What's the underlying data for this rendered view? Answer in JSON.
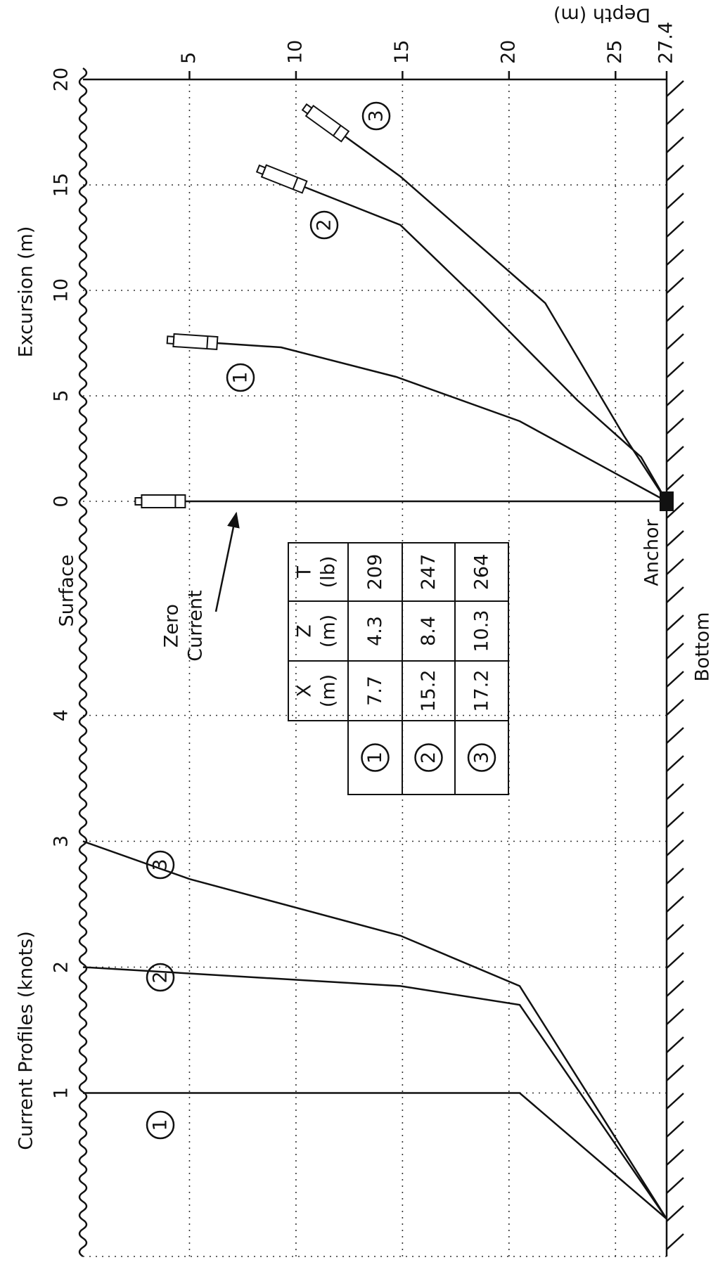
{
  "chart_data": {
    "type": "mooring",
    "excursion_axis": {
      "label": "Excursion (m)",
      "xlim": [
        0,
        20
      ],
      "xticks": [
        0,
        5,
        10,
        15,
        20
      ]
    },
    "current_axis": {
      "label": "Current Profiles (knots)",
      "xlim": [
        0,
        4
      ],
      "xticks": [
        1,
        2,
        3,
        4
      ]
    },
    "depth_axis": {
      "label": "Depth (m)",
      "ylim": [
        0,
        27.4
      ],
      "yticks": [
        5,
        10,
        15,
        20,
        25,
        27.4
      ]
    },
    "grid": true,
    "zero_current": {
      "label": [
        "Zero",
        "Current"
      ],
      "x": [
        0,
        0
      ],
      "depth": [
        4.8,
        27.4
      ]
    },
    "series": [
      {
        "name": "1",
        "x": [
          7.5,
          7.3,
          5.9,
          3.8,
          0
        ],
        "depth": [
          6.3,
          9.3,
          14.7,
          20.5,
          27.4
        ]
      },
      {
        "name": "2",
        "x": [
          14.9,
          13.1,
          9.4,
          4.8,
          2.1,
          0
        ],
        "depth": [
          10.4,
          14.9,
          18.7,
          23.2,
          26.2,
          27.4
        ]
      },
      {
        "name": "3",
        "x": [
          17.3,
          15.4,
          9.4,
          3.1,
          0
        ],
        "depth": [
          12.3,
          14.9,
          21.7,
          25.4,
          27.4
        ]
      }
    ],
    "current_profiles": [
      {
        "name": "1",
        "values": [
          1.0,
          1.0,
          0
        ],
        "depth": [
          0,
          20.5,
          27.4
        ]
      },
      {
        "name": "2",
        "values": [
          2.0,
          1.85,
          1.7,
          0
        ],
        "depth": [
          0,
          14.9,
          20.5,
          27.4
        ]
      },
      {
        "name": "3",
        "values": [
          3.0,
          2.7,
          2.25,
          1.85,
          0
        ],
        "depth": [
          0,
          5,
          14.9,
          20.5,
          27.4
        ]
      }
    ],
    "annotations": {
      "surface": "Surface",
      "bottom": "Bottom",
      "anchor": "Anchor"
    },
    "table": {
      "columns": [
        {
          "name": "X",
          "unit": "(m)"
        },
        {
          "name": "Z",
          "unit": "(m)"
        },
        {
          "name": "T",
          "unit": "(lb)"
        }
      ],
      "rows": [
        {
          "label": "1",
          "values": [
            7.7,
            4.3,
            209
          ]
        },
        {
          "label": "2",
          "values": [
            15.2,
            8.4,
            247
          ]
        },
        {
          "label": "3",
          "values": [
            17.2,
            10.3,
            264
          ]
        }
      ]
    }
  }
}
